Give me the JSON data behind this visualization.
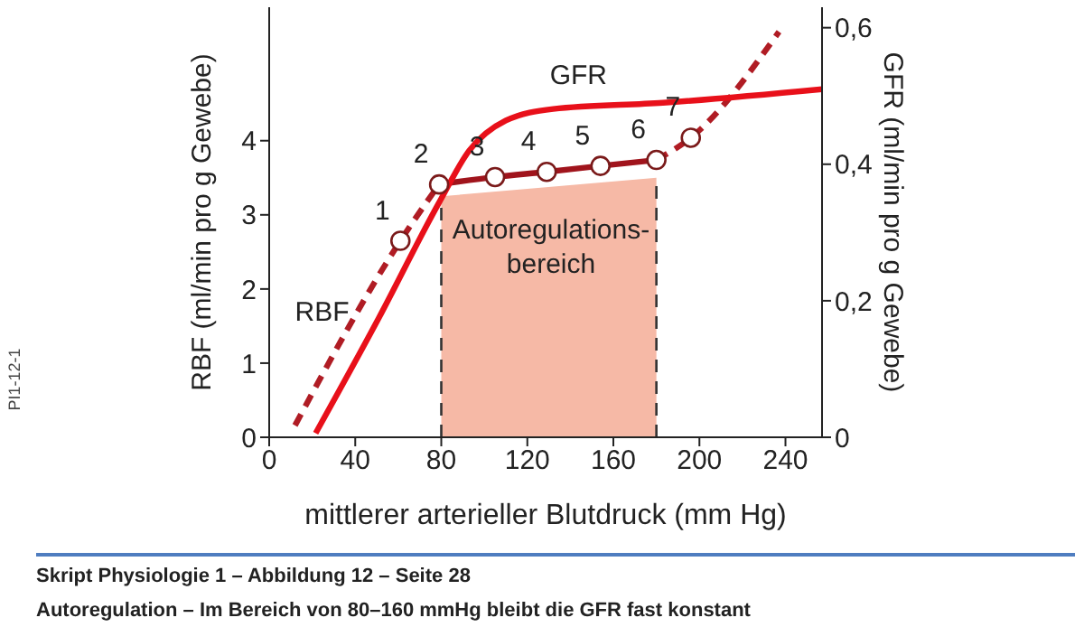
{
  "chart_data": {
    "type": "line",
    "xlabel": "mittlerer arterieller Blutdruck (mm Hg)",
    "ylabel": "RBF (ml/min pro g Gewebe)",
    "y2label": "GFR (ml/min pro g Gewebe)",
    "xlim": [
      0,
      257
    ],
    "xticks": [
      0,
      40,
      80,
      120,
      160,
      200,
      240
    ],
    "ylim": [
      0,
      5.8
    ],
    "yticks": [
      0,
      1,
      2,
      3,
      4
    ],
    "y2lim": [
      0,
      0.63
    ],
    "y2ticks": [
      0,
      {
        "value": 0.2,
        "label": "0,2"
      },
      {
        "value": 0.4,
        "label": "0,4"
      },
      {
        "value": 0.6,
        "label": "0,6"
      }
    ],
    "grid": false,
    "legend": false,
    "marker": "none",
    "series": [
      {
        "type": "area",
        "color": "#f6b9a6",
        "x": [
          80,
          180
        ],
        "values": [
          3.25,
          3.5
        ]
      },
      {
        "name": "RBF",
        "color": "#b01c24",
        "line_style": "dashed",
        "x": [
          12,
          61,
          79
        ],
        "values": [
          0.16,
          2.65,
          3.41
        ]
      },
      {
        "color": "#a0141c",
        "line_style": "solid",
        "x": [
          79,
          105,
          129,
          154,
          180
        ],
        "values": [
          3.41,
          3.51,
          3.58,
          3.66,
          3.74
        ]
      },
      {
        "color": "#b01c24",
        "line_style": "dashed",
        "x": [
          180,
          196,
          237
        ],
        "values": [
          3.74,
          4.04,
          5.47
        ]
      },
      {
        "name": "GFR",
        "axis": "y2",
        "color": "#e8101a",
        "line_style": "solid",
        "x": [
          21.6,
          51,
          79,
          93,
          110,
          132,
          183,
          257
        ],
        "values": [
          0.006,
          0.175,
          0.344,
          0.42,
          0.464,
          0.481,
          0.49,
          0.51
        ]
      },
      {
        "type": "scatter",
        "marker": "circle",
        "color": "#7a1a1a",
        "x": [
          61,
          79,
          105,
          129,
          154,
          180,
          196
        ],
        "values": [
          2.65,
          3.41,
          3.51,
          3.58,
          3.66,
          3.74,
          4.04
        ]
      }
    ],
    "ref_lines": [
      {
        "axis": "x",
        "value": 80,
        "line_style": "dashed",
        "color": "#333333"
      },
      {
        "axis": "x",
        "value": 180,
        "line_style": "dashed",
        "color": "#333333"
      }
    ],
    "annotations": [
      "PI1-12-1",
      "Skript Physiologie 1 – Abbildung 12 – Seite 28",
      "Autoregulation – Im Bereich von 80–160 mmHg bleibt die GFR fast konstant",
      "Autoregulations-\nbereich",
      {
        "text": "1",
        "x": 61,
        "y": 2.65
      },
      {
        "text": "2",
        "x": 79,
        "y": 3.41
      },
      {
        "text": "3",
        "x": 105,
        "y": 3.51
      },
      {
        "text": "4",
        "x": 129,
        "y": 3.58
      },
      {
        "text": "5",
        "x": 154,
        "y": 3.66
      },
      {
        "text": "6",
        "x": 180,
        "y": 3.74
      },
      {
        "text": "7",
        "x": 196,
        "y": 4.04
      }
    ]
  }
}
